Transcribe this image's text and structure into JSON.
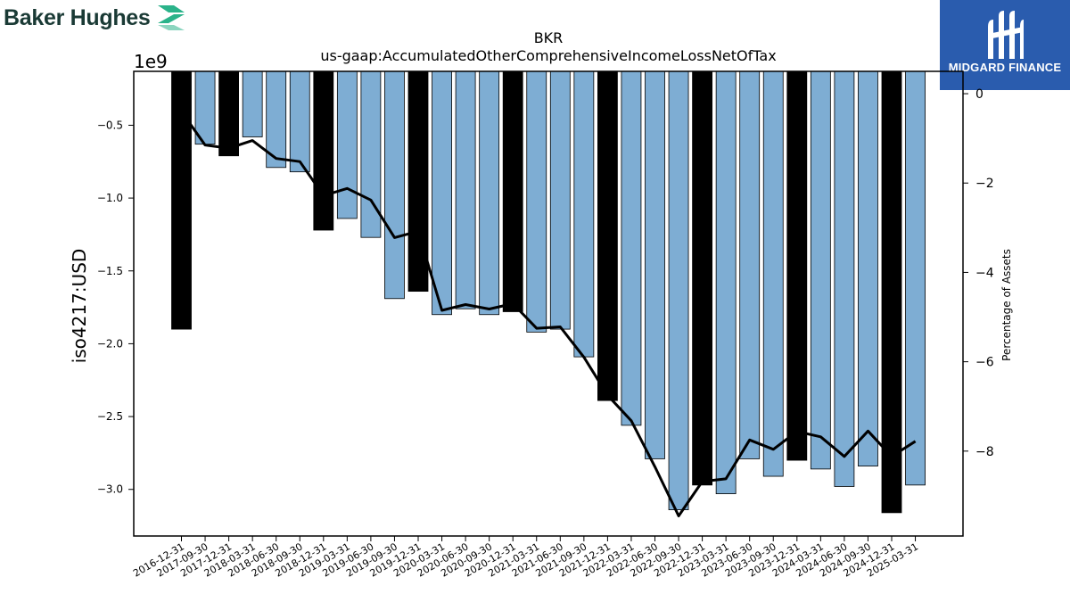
{
  "branding": {
    "left_logo_text": "Baker Hughes",
    "left_logo_color": "#1a3a35",
    "left_logo_accent": "#2bb38a",
    "right_logo_text": "MIDGARD FINANCE",
    "right_logo_bg": "#2a5cae"
  },
  "chart_data": {
    "type": "bar",
    "title": "BKR",
    "subtitle": "us-gaap:AccumulatedOtherComprehensiveIncomeLossNetOfTax",
    "ylabel": "iso4217:USD",
    "y_offset_label": "1e9",
    "y2label": "Percentage of Assets",
    "ylim": [
      -3.32,
      -0.13
    ],
    "y2lim": [
      -9.9,
      0.5
    ],
    "yticks": [
      -0.5,
      -1.0,
      -1.5,
      -2.0,
      -2.5,
      -3.0
    ],
    "y2ticks": [
      0,
      -2,
      -4,
      -6,
      -8
    ],
    "bar_color_quarterly": "#7eadd3",
    "bar_color_annual": "#000000",
    "line_color": "#000000",
    "categories": [
      "2016-12-31",
      "2017-09-30",
      "2017-12-31",
      "2018-03-31",
      "2018-06-30",
      "2018-09-30",
      "2018-12-31",
      "2019-03-31",
      "2019-06-30",
      "2019-09-30",
      "2019-12-31",
      "2020-03-31",
      "2020-06-30",
      "2020-09-30",
      "2020-12-31",
      "2021-03-31",
      "2021-06-30",
      "2021-09-30",
      "2021-12-31",
      "2022-03-31",
      "2022-06-30",
      "2022-09-30",
      "2022-12-31",
      "2023-03-31",
      "2023-06-30",
      "2023-09-30",
      "2023-12-31",
      "2024-03-31",
      "2024-06-30",
      "2024-09-30",
      "2024-12-31",
      "2025-03-31"
    ],
    "annual": [
      true,
      false,
      true,
      false,
      false,
      false,
      true,
      false,
      false,
      false,
      true,
      false,
      false,
      false,
      true,
      false,
      false,
      false,
      true,
      false,
      false,
      false,
      true,
      false,
      false,
      false,
      true,
      false,
      false,
      false,
      true,
      false
    ],
    "series": [
      {
        "name": "AccumulatedOtherComprehensiveIncomeLossNetOfTax",
        "values": [
          -1.9,
          -0.63,
          -0.71,
          -0.58,
          -0.79,
          -0.82,
          -1.22,
          -1.14,
          -1.27,
          -1.69,
          -1.64,
          -1.8,
          -1.76,
          -1.8,
          -1.78,
          -1.92,
          -1.9,
          -2.09,
          -2.39,
          -2.56,
          -2.79,
          -3.14,
          -2.97,
          -3.03,
          -2.79,
          -2.91,
          -2.8,
          -2.86,
          -2.98,
          -2.84,
          -3.16,
          -2.97
        ]
      },
      {
        "name": "Percentage of Assets",
        "values": [
          -0.4,
          -1.15,
          -1.22,
          -1.05,
          -1.45,
          -1.52,
          -2.28,
          -2.12,
          -2.38,
          -3.22,
          -3.08,
          -4.85,
          -4.72,
          -4.82,
          -4.7,
          -5.25,
          -5.22,
          -5.9,
          -6.75,
          -7.32,
          -8.35,
          -9.45,
          -8.68,
          -8.62,
          -7.75,
          -7.96,
          -7.56,
          -7.68,
          -8.12,
          -7.55,
          -8.12,
          -7.78
        ]
      }
    ]
  }
}
